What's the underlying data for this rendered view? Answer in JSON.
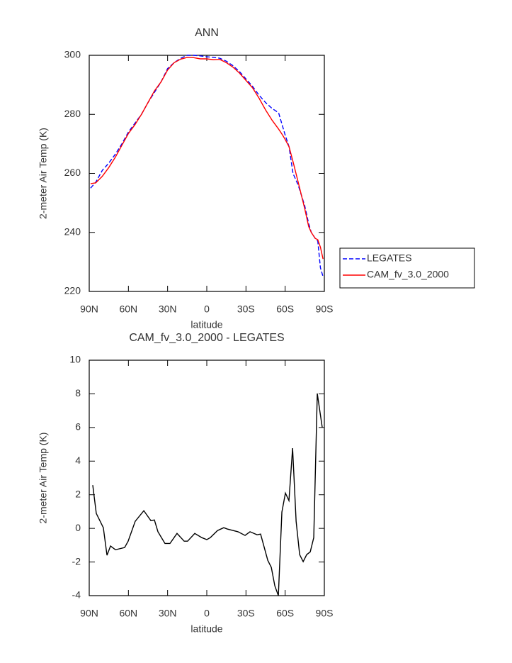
{
  "chart_data": [
    {
      "type": "line",
      "title": "ANN",
      "xlabel": "latitude",
      "ylabel": "2-meter Air Temp (K)",
      "x": [
        89,
        85,
        80,
        75,
        70,
        65,
        60,
        55,
        50,
        45,
        40,
        35,
        30,
        25,
        20,
        15,
        10,
        5,
        0,
        -5,
        -10,
        -15,
        -20,
        -25,
        -30,
        -35,
        -40,
        -45,
        -50,
        -55,
        -58,
        -60,
        -63,
        -66,
        -70,
        -75,
        -78,
        -80,
        -83,
        -85,
        -87,
        -89
      ],
      "series": [
        {
          "name": "LEGATES",
          "color": "#0000ff",
          "linestyle": "dashed",
          "values": [
            255,
            257,
            261,
            263.5,
            266.5,
            270,
            274,
            277,
            280,
            284,
            287.5,
            291,
            295.5,
            297.5,
            299,
            300,
            300,
            299.8,
            299.5,
            299.3,
            299,
            298,
            296.5,
            294.5,
            292,
            289.5,
            286.5,
            284,
            282,
            280.5,
            276,
            273,
            269,
            260,
            256,
            249,
            243,
            240,
            238,
            237,
            228,
            225
          ]
        },
        {
          "name": "CAM_fv_3.0_2000",
          "color": "#ff0000",
          "linestyle": "solid",
          "values": [
            256.5,
            256.8,
            259,
            262,
            265.5,
            269.5,
            273.5,
            276.5,
            280,
            284,
            288,
            291,
            295,
            297.5,
            298.7,
            299.3,
            299.2,
            298.8,
            298.8,
            298.5,
            298.6,
            297.5,
            296,
            294,
            291.5,
            289,
            285.5,
            281.5,
            278,
            275,
            273,
            271.5,
            269,
            264,
            257,
            248,
            242,
            240,
            238,
            237.5,
            235,
            231
          ]
        }
      ],
      "xlim": [
        90,
        -90
      ],
      "xticks": [
        {
          "value": 90,
          "label": "90N"
        },
        {
          "value": 60,
          "label": "60N"
        },
        {
          "value": 30,
          "label": "30N"
        },
        0,
        {
          "value": -30,
          "label": "30S"
        },
        {
          "value": -60,
          "label": "60S"
        },
        {
          "value": -90,
          "label": "90S"
        }
      ],
      "ylim": [
        220,
        300
      ],
      "yticks": [
        220,
        240,
        260,
        280,
        300
      ],
      "legend": "right"
    },
    {
      "type": "line",
      "title": "CAM_fv_3.0_2000 - LEGATES",
      "xlabel": "latitude",
      "ylabel": "2-meter Air Temp (K)",
      "x": [
        87.3,
        84.6,
        79.2,
        76.4,
        73.7,
        69.9,
        62.9,
        60.2,
        54.8,
        48.2,
        42.8,
        40.1,
        37.4,
        32,
        28.2,
        22.8,
        17.3,
        14.7,
        9.2,
        3.8,
        0,
        -2.7,
        -8.2,
        -13,
        -15.7,
        -23.9,
        -29.3,
        -33.1,
        -38.5,
        -41.2,
        -46.7,
        -49.4,
        -52.1,
        -54.8,
        -57.5,
        -60.2,
        -62.9,
        -65.7,
        -68.4,
        -71.1,
        -73.8,
        -76.5,
        -79.2,
        -81.9,
        -84.6,
        -88.4
      ],
      "values": [
        2.57,
        0.89,
        0.04,
        -1.6,
        -1.05,
        -1.27,
        -1.14,
        -0.76,
        0.42,
        1.05,
        0.46,
        0.5,
        -0.2,
        -0.9,
        -0.9,
        -0.3,
        -0.76,
        -0.76,
        -0.3,
        -0.55,
        -0.67,
        -0.55,
        -0.13,
        0.04,
        -0.04,
        -0.2,
        -0.42,
        -0.2,
        -0.38,
        -0.34,
        -1.9,
        -2.32,
        -3.42,
        -4,
        0.97,
        2.1,
        1.65,
        4.77,
        0.42,
        -1.56,
        -1.98,
        -1.56,
        -1.4,
        -0.55,
        8.02,
        6.0
      ],
      "color": "#000000",
      "xlim": [
        90,
        -90
      ],
      "xticks": [
        {
          "value": 90,
          "label": "90N"
        },
        {
          "value": 60,
          "label": "60N"
        },
        {
          "value": 30,
          "label": "30N"
        },
        0,
        {
          "value": -30,
          "label": "30S"
        },
        {
          "value": -60,
          "label": "60S"
        },
        {
          "value": -90,
          "label": "90S"
        }
      ],
      "ylim": [
        -4,
        10
      ],
      "yticks": [
        -4,
        -2,
        0,
        2,
        4,
        6,
        8,
        10
      ]
    }
  ]
}
